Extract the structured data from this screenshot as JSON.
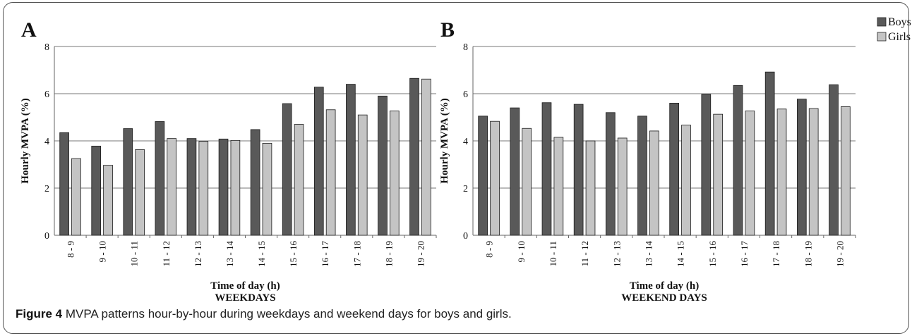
{
  "caption": {
    "label": "Figure 4",
    "text": "MVPA patterns hour-by-hour during weekdays and weekend days for boys and girls."
  },
  "legend": {
    "placement": "top-right",
    "items": [
      {
        "name": "Boys",
        "color": "#595959"
      },
      {
        "name": "Girls",
        "color": "#c4c4c4"
      }
    ]
  },
  "chart_data": [
    {
      "type": "bar",
      "panel_label": "A",
      "xlabel": "Time of day (h)",
      "subtitle": "WEEKDAYS",
      "ylabel": "Hourly MVPA (%)",
      "ylim": [
        0,
        8
      ],
      "yticks": [
        0,
        2,
        4,
        6,
        8
      ],
      "grid": true,
      "categories": [
        "8 - 9",
        "9 - 10",
        "10 - 11",
        "11 - 12",
        "12 - 13",
        "13 - 14",
        "14 - 15",
        "15 - 16",
        "16 - 17",
        "17 - 18",
        "18 - 19",
        "19 - 20"
      ],
      "series": [
        {
          "name": "Boys",
          "color": "#595959",
          "values": [
            4.35,
            3.78,
            4.52,
            4.82,
            4.1,
            4.08,
            4.48,
            5.58,
            6.28,
            6.4,
            5.9,
            6.65
          ]
        },
        {
          "name": "Girls",
          "color": "#c4c4c4",
          "values": [
            3.25,
            2.97,
            3.63,
            4.1,
            3.98,
            4.02,
            3.9,
            4.7,
            5.32,
            5.1,
            5.27,
            6.62
          ]
        }
      ]
    },
    {
      "type": "bar",
      "panel_label": "B",
      "xlabel": "Time of day (h)",
      "subtitle": "WEEKEND DAYS",
      "ylabel": "Hourly MVPA (%)",
      "ylim": [
        0,
        8
      ],
      "yticks": [
        0,
        2,
        4,
        6,
        8
      ],
      "grid": true,
      "categories": [
        "8 - 9",
        "9 - 10",
        "10 - 11",
        "11 - 12",
        "12 - 13",
        "13 - 14",
        "14 - 15",
        "15 - 16",
        "16 - 17",
        "17 - 18",
        "18 - 19",
        "19 - 20"
      ],
      "series": [
        {
          "name": "Boys",
          "color": "#595959",
          "values": [
            5.05,
            5.4,
            5.62,
            5.55,
            5.2,
            5.05,
            5.6,
            5.97,
            6.35,
            6.92,
            5.77,
            6.38
          ]
        },
        {
          "name": "Girls",
          "color": "#c4c4c4",
          "values": [
            4.83,
            4.53,
            4.15,
            4.0,
            4.12,
            4.42,
            4.67,
            5.13,
            5.27,
            5.35,
            5.37,
            5.45
          ]
        }
      ]
    }
  ]
}
